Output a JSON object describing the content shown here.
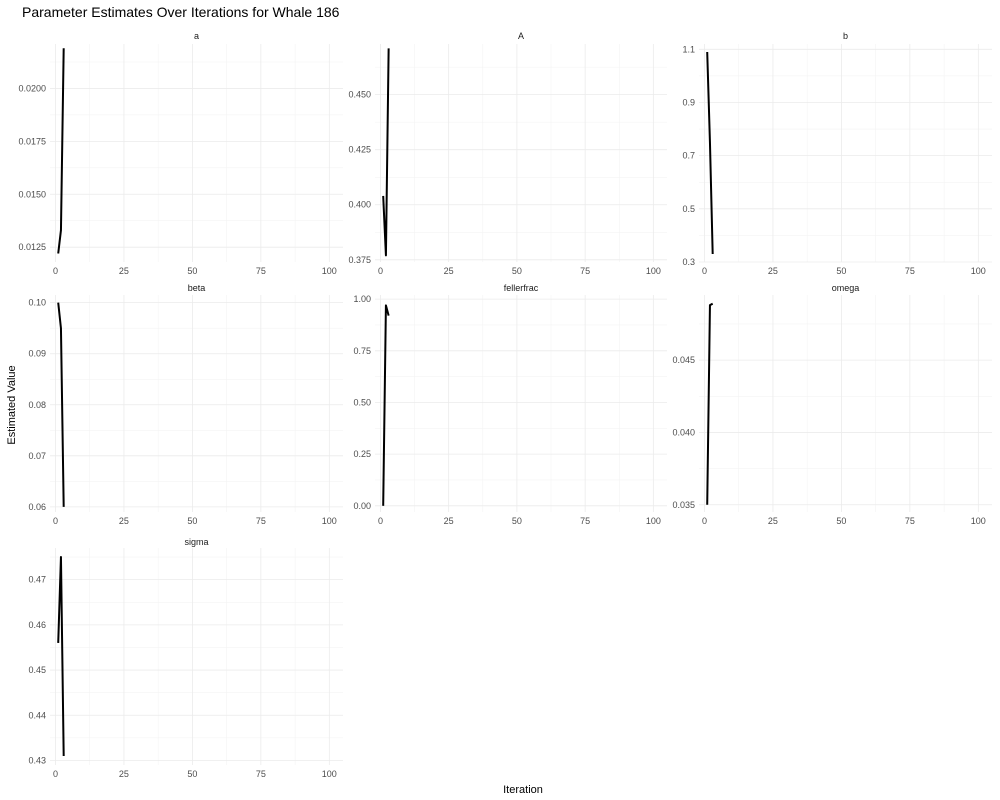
{
  "figure": {
    "title": "Parameter Estimates Over Iterations for Whale 186",
    "xlabel": "Iteration",
    "ylabel": "Estimated Value"
  },
  "chart_data": [
    {
      "type": "line",
      "panel": "a",
      "xlim": [
        -2,
        105
      ],
      "ylim": [
        0.0118,
        0.0221
      ],
      "x_ticks": [
        0,
        25,
        50,
        75,
        100
      ],
      "x_tick_labels": [
        "0",
        "25",
        "50",
        "75",
        "100"
      ],
      "y_ticks": [
        0.0125,
        0.015,
        0.0175,
        0.02
      ],
      "y_tick_labels": [
        "0.0125",
        "0.0150",
        "0.0175",
        "0.0200"
      ],
      "x": [
        1,
        2,
        3
      ],
      "series": [
        {
          "values": [
            0.0122,
            0.0133,
            0.0219
          ]
        }
      ]
    },
    {
      "type": "line",
      "panel": "A",
      "xlim": [
        -2,
        105
      ],
      "ylim": [
        0.374,
        0.473
      ],
      "x_ticks": [
        0,
        25,
        50,
        75,
        100
      ],
      "x_tick_labels": [
        "0",
        "25",
        "50",
        "75",
        "100"
      ],
      "y_ticks": [
        0.375,
        0.4,
        0.425,
        0.45
      ],
      "y_tick_labels": [
        "0.375",
        "0.400",
        "0.425",
        "0.450"
      ],
      "x": [
        1,
        2,
        3
      ],
      "series": [
        {
          "values": [
            0.404,
            0.377,
            0.471
          ]
        }
      ]
    },
    {
      "type": "line",
      "panel": "b",
      "xlim": [
        -2,
        105
      ],
      "ylim": [
        0.3,
        1.12
      ],
      "x_ticks": [
        0,
        25,
        50,
        75,
        100
      ],
      "x_tick_labels": [
        "0",
        "25",
        "50",
        "75",
        "100"
      ],
      "y_ticks": [
        0.3,
        0.5,
        0.7,
        0.9,
        1.1
      ],
      "y_tick_labels": [
        "0.3",
        "0.5",
        "0.7",
        "0.9",
        "1.1"
      ],
      "x": [
        1,
        2,
        3
      ],
      "series": [
        {
          "values": [
            1.09,
            0.75,
            0.33
          ]
        }
      ]
    },
    {
      "type": "line",
      "panel": "beta",
      "xlim": [
        -2,
        105
      ],
      "ylim": [
        0.059,
        0.1015
      ],
      "x_ticks": [
        0,
        25,
        50,
        75,
        100
      ],
      "x_tick_labels": [
        "0",
        "25",
        "50",
        "75",
        "100"
      ],
      "y_ticks": [
        0.06,
        0.07,
        0.08,
        0.09,
        0.1
      ],
      "y_tick_labels": [
        "0.06",
        "0.07",
        "0.08",
        "0.09",
        "0.10"
      ],
      "x": [
        1,
        2,
        3
      ],
      "series": [
        {
          "values": [
            0.1,
            0.095,
            0.06
          ]
        }
      ]
    },
    {
      "type": "line",
      "panel": "fellerfrac",
      "xlim": [
        -2,
        105
      ],
      "ylim": [
        -0.03,
        1.02
      ],
      "x_ticks": [
        0,
        25,
        50,
        75,
        100
      ],
      "x_tick_labels": [
        "0",
        "25",
        "50",
        "75",
        "100"
      ],
      "y_ticks": [
        0,
        0.25,
        0.5,
        0.75,
        1
      ],
      "y_tick_labels": [
        "0.00",
        "0.25",
        "0.50",
        "0.75",
        "1.00"
      ],
      "x": [
        1,
        2,
        3
      ],
      "series": [
        {
          "values": [
            0.0,
            0.97,
            0.92
          ]
        }
      ]
    },
    {
      "type": "line",
      "panel": "omega",
      "xlim": [
        -2,
        105
      ],
      "ylim": [
        0.0345,
        0.0495
      ],
      "x_ticks": [
        0,
        25,
        50,
        75,
        100
      ],
      "x_tick_labels": [
        "0",
        "25",
        "50",
        "75",
        "100"
      ],
      "y_ticks": [
        0.035,
        0.04,
        0.045
      ],
      "y_tick_labels": [
        "0.035",
        "0.040",
        "0.045"
      ],
      "x": [
        1,
        2,
        3
      ],
      "series": [
        {
          "values": [
            0.035,
            0.0488,
            0.0489
          ]
        }
      ]
    },
    {
      "type": "line",
      "panel": "sigma",
      "xlim": [
        -2,
        105
      ],
      "ylim": [
        0.429,
        0.477
      ],
      "x_ticks": [
        0,
        25,
        50,
        75,
        100
      ],
      "x_tick_labels": [
        "0",
        "25",
        "50",
        "75",
        "100"
      ],
      "y_ticks": [
        0.43,
        0.44,
        0.45,
        0.46,
        0.47
      ],
      "y_tick_labels": [
        "0.43",
        "0.44",
        "0.45",
        "0.46",
        "0.47"
      ],
      "x": [
        1,
        2,
        3
      ],
      "series": [
        {
          "values": [
            0.456,
            0.475,
            0.431
          ]
        }
      ]
    }
  ]
}
